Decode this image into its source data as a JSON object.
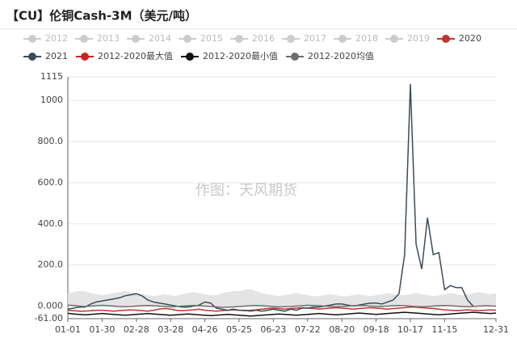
{
  "chart_data": {
    "type": "line",
    "title": "【CU】伦铜Cash-3M（美元/吨）",
    "watermark": "作图：天风期货",
    "legend_hidden": [
      "2012",
      "2013",
      "2014",
      "2015",
      "2016",
      "2017",
      "2018",
      "2019"
    ],
    "hidden_color": "#cccccc",
    "grid": true,
    "categories": [
      "01-01",
      null,
      null,
      null,
      null,
      null,
      "01-30",
      null,
      null,
      null,
      null,
      null,
      "02-28",
      null,
      null,
      null,
      null,
      null,
      "03-28",
      null,
      null,
      null,
      null,
      null,
      "04-26",
      null,
      null,
      null,
      null,
      null,
      "05-25",
      null,
      null,
      null,
      null,
      null,
      "06-23",
      null,
      null,
      null,
      null,
      null,
      "07-22",
      null,
      null,
      null,
      null,
      null,
      "08-20",
      null,
      null,
      null,
      null,
      null,
      "09-18",
      null,
      null,
      null,
      null,
      null,
      "10-17",
      null,
      null,
      null,
      null,
      null,
      "11-15",
      null,
      null,
      null,
      null,
      null,
      null,
      null,
      null,
      "12-31"
    ],
    "ylim": [
      -61,
      1115
    ],
    "yticks": [
      {
        "value": -61,
        "label": "-61.00"
      },
      {
        "value": 0,
        "label": "0.000"
      },
      {
        "value": 200,
        "label": "200.0"
      },
      {
        "value": 400,
        "label": "400.0"
      },
      {
        "value": 600,
        "label": "600.0"
      },
      {
        "value": 800,
        "label": "800.0"
      },
      1000,
      1115
    ],
    "series": [
      {
        "name": "2012-2020最大值",
        "color": "#cc2222",
        "area_fill": "#e4e4e4",
        "values": [
          60,
          65,
          70,
          70,
          60,
          55,
          50,
          55,
          60,
          65,
          70,
          65,
          60,
          55,
          50,
          45,
          50,
          55,
          50,
          45,
          55,
          60,
          65,
          60,
          55,
          50,
          50,
          60,
          65,
          70,
          70,
          75,
          80,
          70,
          60,
          55,
          50,
          45,
          50,
          55,
          60,
          55,
          50,
          45,
          45,
          50,
          55,
          50,
          45,
          45,
          50,
          55,
          50,
          45,
          50,
          55,
          60,
          55,
          50,
          50,
          55,
          60,
          55,
          50,
          45,
          50,
          55,
          60,
          55,
          50,
          55,
          60,
          65,
          60,
          55,
          60
        ]
      },
      {
        "name": "2020",
        "color": "#c23531",
        "values": [
          -20,
          -22,
          -25,
          -25,
          -22,
          -20,
          -20,
          -22,
          -25,
          -22,
          -20,
          -18,
          -20,
          -22,
          -25,
          -20,
          -15,
          -12,
          -15,
          -20,
          -22,
          -20,
          -18,
          -15,
          -20,
          -22,
          -25,
          -22,
          -20,
          -18,
          -20,
          -22,
          -20,
          -18,
          -15,
          -12,
          -10,
          -12,
          -15,
          -12,
          -10,
          -8,
          -10,
          -12,
          -15,
          -12,
          -10,
          -8,
          -10,
          -12,
          -15,
          -12,
          -10,
          -8,
          -10,
          -12,
          -15,
          -12,
          -10,
          -8,
          -5,
          -5,
          -8,
          -10,
          -12,
          -15,
          -18,
          -20,
          -22,
          -20,
          -18,
          -20,
          -22,
          -20,
          -18,
          -20
        ]
      },
      {
        "name": "2021",
        "color": "#3b4b5c",
        "values": [
          -15,
          -10,
          -5,
          -5,
          10,
          20,
          25,
          30,
          35,
          40,
          50,
          55,
          60,
          50,
          30,
          20,
          15,
          10,
          5,
          0,
          -5,
          -5,
          0,
          5,
          20,
          15,
          -10,
          -15,
          -20,
          -15,
          -20,
          -20,
          -25,
          -20,
          -25,
          -20,
          -15,
          -20,
          -25,
          -15,
          -20,
          -10,
          -10,
          -5,
          -5,
          0,
          5,
          10,
          10,
          5,
          0,
          5,
          10,
          15,
          15,
          10,
          20,
          30,
          60,
          250,
          1080,
          300,
          180,
          430,
          250,
          260,
          80,
          100,
          90,
          90,
          30,
          0,
          null,
          null,
          null,
          null
        ]
      },
      {
        "name": "2012-2020最小值",
        "color": "#111111",
        "values": [
          -35,
          -38,
          -40,
          -42,
          -40,
          -38,
          -36,
          -38,
          -40,
          -42,
          -44,
          -42,
          -40,
          -38,
          -36,
          -38,
          -40,
          -42,
          -44,
          -42,
          -40,
          -38,
          -40,
          -42,
          -44,
          -46,
          -44,
          -42,
          -40,
          -42,
          -44,
          -46,
          -48,
          -46,
          -44,
          -42,
          -40,
          -38,
          -40,
          -42,
          -44,
          -42,
          -40,
          -38,
          -36,
          -38,
          -40,
          -42,
          -40,
          -38,
          -36,
          -34,
          -36,
          -38,
          -40,
          -38,
          -36,
          -34,
          -32,
          -30,
          -32,
          -34,
          -36,
          -38,
          -40,
          -42,
          -40,
          -38,
          -36,
          -34,
          -32,
          -30,
          -32,
          -34,
          -36,
          -34
        ]
      },
      {
        "name": "2012-2020均值",
        "color": "#6e6e6e",
        "values": [
          5,
          3,
          0,
          -2,
          0,
          2,
          4,
          2,
          0,
          -2,
          -3,
          -2,
          0,
          2,
          3,
          2,
          0,
          -2,
          -4,
          -2,
          0,
          2,
          3,
          2,
          0,
          -2,
          -4,
          -6,
          -5,
          -4,
          -2,
          0,
          2,
          3,
          2,
          0,
          -2,
          -4,
          -3,
          -2,
          0,
          2,
          4,
          3,
          2,
          0,
          -2,
          -3,
          -2,
          0,
          2,
          3,
          2,
          0,
          -2,
          -1,
          0,
          2,
          3,
          2,
          0,
          -2,
          -3,
          -2,
          0,
          2,
          3,
          2,
          0,
          -2,
          -3,
          -2,
          0,
          2,
          1,
          0
        ]
      }
    ]
  }
}
